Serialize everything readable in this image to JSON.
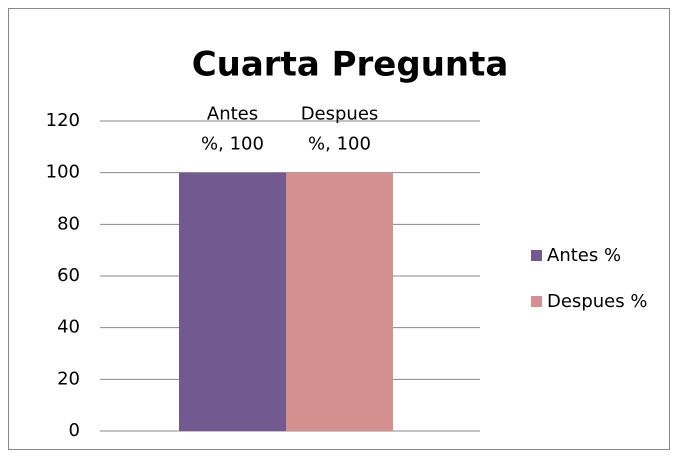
{
  "chart_data": {
    "type": "bar",
    "title": "Cuarta Pregunta",
    "categories": [
      null
    ],
    "series": [
      {
        "name": "Antes %",
        "color": "#725990",
        "values": [
          100
        ],
        "value_labels": [
          "Antes %, 100"
        ]
      },
      {
        "name": "Despues %",
        "color": "#d3908e",
        "values": [
          100
        ],
        "value_labels": [
          "Despues %, 100"
        ]
      }
    ],
    "ylim": [
      0,
      120
    ],
    "yticks": [
      0,
      20,
      40,
      60,
      80,
      100,
      120
    ],
    "grid": true,
    "legend": "right"
  }
}
